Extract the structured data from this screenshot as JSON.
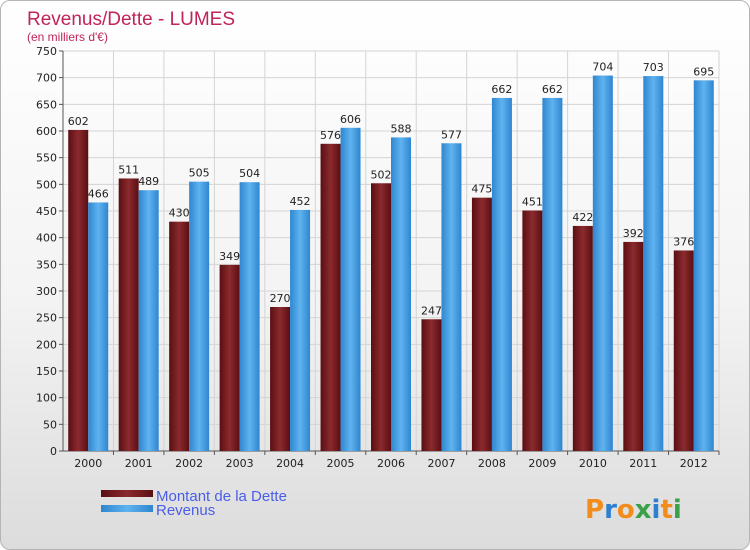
{
  "chart_data": {
    "type": "bar",
    "title": "Revenus/Dette - LUMES",
    "subtitle": "(en milliers d'€)",
    "categories": [
      "2000",
      "2001",
      "2002",
      "2003",
      "2004",
      "2005",
      "2006",
      "2007",
      "2008",
      "2009",
      "2010",
      "2011",
      "2012"
    ],
    "series": [
      {
        "name": "Montant de la Dette",
        "color": "#7a1a1f",
        "values": [
          602,
          511,
          430,
          349,
          270,
          576,
          502,
          247,
          475,
          451,
          422,
          392,
          376
        ]
      },
      {
        "name": "Revenus",
        "color": "#4aa3e6",
        "values": [
          466,
          489,
          505,
          504,
          452,
          606,
          588,
          577,
          662,
          662,
          704,
          703,
          695
        ]
      }
    ],
    "ylim": [
      0,
      750
    ],
    "ytick_step": 50,
    "grid": true,
    "legend_position": "bottom-left"
  },
  "brand": {
    "text": "Proxiti"
  }
}
